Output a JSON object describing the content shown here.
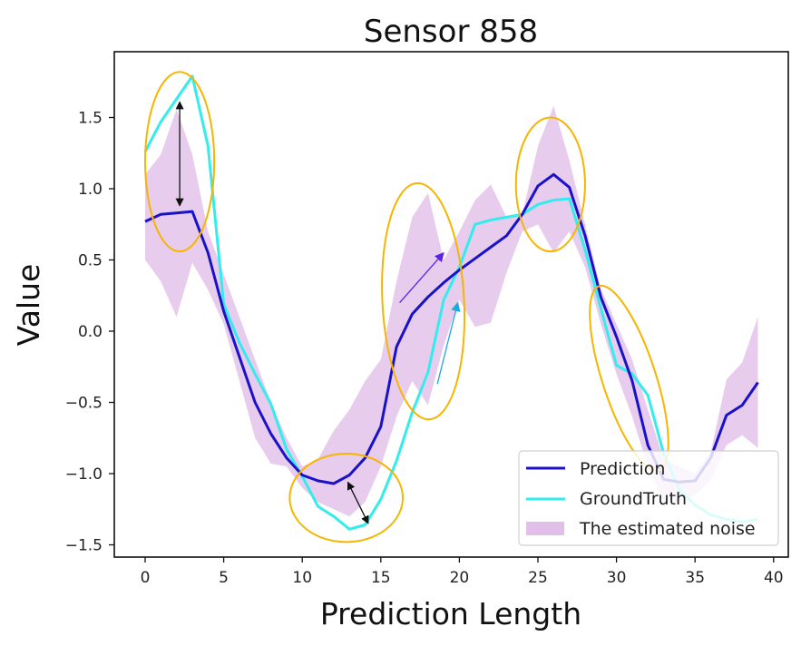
{
  "chart_data": {
    "type": "line",
    "title": "Sensor 858",
    "xlabel": "Prediction Length",
    "ylabel": "Value",
    "xlim": [
      -1.95,
      40.8
    ],
    "ylim": [
      -1.58,
      1.96
    ],
    "xticks": [
      0,
      5,
      10,
      15,
      20,
      25,
      30,
      35,
      40
    ],
    "xtick_labels": [
      "0",
      "5",
      "10",
      "15",
      "20",
      "25",
      "30",
      "35",
      "40"
    ],
    "yticks": [
      1.5,
      1.0,
      0.5,
      0.0,
      -0.5,
      -1.0,
      -1.5
    ],
    "ytick_labels": [
      "1.5",
      "1.0",
      "0.5",
      "0.0",
      "−0.5",
      "−1.0",
      "−1.5"
    ],
    "grid": false,
    "legend_position": "lower right",
    "x": [
      0,
      1,
      2,
      3,
      4,
      5,
      6,
      7,
      8,
      9,
      10,
      11,
      12,
      13,
      14,
      15,
      16,
      17,
      18,
      19,
      20,
      21,
      22,
      23,
      24,
      25,
      26,
      27,
      28,
      29,
      30,
      31,
      32,
      33,
      34,
      35,
      36,
      37,
      38,
      39
    ],
    "series": [
      {
        "name": "Prediction",
        "color": "#1a12c8",
        "values": [
          0.77,
          0.82,
          0.83,
          0.84,
          0.55,
          0.14,
          -0.18,
          -0.5,
          -0.72,
          -0.89,
          -1.01,
          -1.05,
          -1.07,
          -1.01,
          -0.89,
          -0.67,
          -0.11,
          0.12,
          0.24,
          0.34,
          0.43,
          0.51,
          0.59,
          0.67,
          0.82,
          1.02,
          1.1,
          1.01,
          0.67,
          0.24,
          -0.04,
          -0.35,
          -0.8,
          -1.04,
          -1.06,
          -1.05,
          -0.89,
          -0.59,
          -0.52,
          -0.36
        ]
      },
      {
        "name": "GroundTruth",
        "color": "#33ecec",
        "values": [
          1.26,
          1.47,
          1.63,
          1.79,
          1.3,
          0.19,
          -0.08,
          -0.3,
          -0.51,
          -0.83,
          -1.02,
          -1.23,
          -1.3,
          -1.39,
          -1.36,
          -1.18,
          -0.91,
          -0.57,
          -0.29,
          0.22,
          0.45,
          0.75,
          0.78,
          0.8,
          0.82,
          0.89,
          0.92,
          0.93,
          0.57,
          0.16,
          -0.24,
          -0.3,
          -0.45,
          -0.86,
          -1.11,
          -1.22,
          -1.29,
          -1.32,
          -1.34,
          -1.32
        ]
      },
      {
        "name": "The estimated noise",
        "type": "band",
        "color": "#e2bfe9",
        "upper": [
          1.1,
          1.24,
          1.56,
          1.24,
          0.7,
          0.4,
          0.1,
          -0.2,
          -0.5,
          -0.75,
          -0.95,
          -0.9,
          -0.7,
          -0.55,
          -0.35,
          -0.2,
          0.35,
          0.8,
          0.97,
          0.5,
          0.7,
          0.92,
          1.03,
          0.8,
          0.82,
          1.3,
          1.58,
          1.2,
          0.75,
          0.3,
          0.05,
          -0.2,
          -0.55,
          -0.9,
          -0.95,
          -1.0,
          -0.85,
          -0.34,
          -0.22,
          0.1
        ],
        "lower": [
          0.5,
          0.35,
          0.1,
          0.48,
          0.29,
          0.05,
          -0.35,
          -0.75,
          -0.93,
          -0.95,
          -1.1,
          -1.2,
          -1.25,
          -1.3,
          -1.2,
          -0.95,
          -0.6,
          -0.35,
          -0.52,
          -0.1,
          0.22,
          0.03,
          0.06,
          0.41,
          0.7,
          0.75,
          0.55,
          0.7,
          0.45,
          0.05,
          -0.3,
          -0.6,
          -0.95,
          -1.2,
          -1.2,
          -1.15,
          -1.05,
          -0.8,
          -0.73,
          -0.82
        ]
      }
    ],
    "annotations": {
      "ellipses": [
        {
          "cx": 2.2,
          "cy": 1.19,
          "rx": 2.2,
          "ry": 0.63,
          "rotation": 0
        },
        {
          "cx": 12.8,
          "cy": -1.17,
          "rx": 3.6,
          "ry": 0.31,
          "rotation": 0
        },
        {
          "cx": 17.7,
          "cy": 0.21,
          "rx": 2.6,
          "ry": 0.83,
          "rotation": -3
        },
        {
          "cx": 25.8,
          "cy": 1.03,
          "rx": 2.2,
          "ry": 0.47,
          "rotation": 0
        },
        {
          "cx": 30.8,
          "cy": -0.33,
          "rx": 1.7,
          "ry": 0.68,
          "rotation": -18
        }
      ],
      "double_arrows": [
        {
          "x1": 2.2,
          "y1": 1.61,
          "x2": 2.2,
          "y2": 0.88,
          "color": "#111111"
        },
        {
          "x1": 12.9,
          "y1": -1.06,
          "x2": 14.2,
          "y2": -1.35,
          "color": "#111111"
        }
      ],
      "single_arrows": [
        {
          "x1": 16.2,
          "y1": 0.2,
          "x2": 19.0,
          "y2": 0.55,
          "color": "#5b22e8"
        },
        {
          "x1": 18.6,
          "y1": -0.37,
          "x2": 19.9,
          "y2": 0.2,
          "color": "#1ea8e0"
        }
      ],
      "ellipse_color": "#f7b500"
    }
  },
  "legend": {
    "items": [
      {
        "label": "Prediction",
        "kind": "line",
        "color": "#1a12c8"
      },
      {
        "label": "GroundTruth",
        "kind": "line",
        "color": "#33ecec"
      },
      {
        "label": "The estimated noise",
        "kind": "patch",
        "color": "#e2bfe9"
      }
    ]
  }
}
